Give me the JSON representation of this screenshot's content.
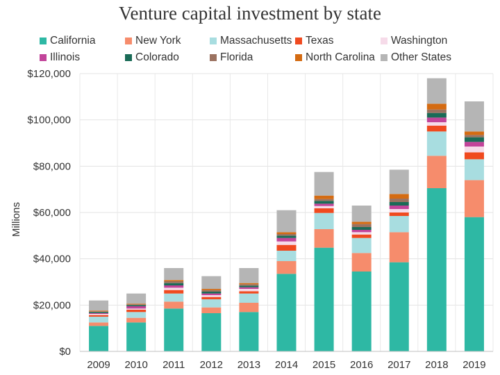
{
  "chart_data": {
    "type": "bar",
    "stacked": true,
    "title": "Venture capital investment by state",
    "xlabel": "",
    "ylabel": "Millions",
    "ylim": [
      0,
      120000
    ],
    "yticks": [
      0,
      20000,
      40000,
      60000,
      80000,
      100000,
      120000
    ],
    "ytick_labels": [
      "$0",
      "$20,000",
      "$40,000",
      "$60,000",
      "$80,000",
      "$100,000",
      "$120,000"
    ],
    "grid": true,
    "legend_position": "top",
    "categories": [
      "2009",
      "2010",
      "2011",
      "2012",
      "2013",
      "2014",
      "2015",
      "2016",
      "2017",
      "2018",
      "2019"
    ],
    "series": [
      {
        "name": "California",
        "color": "#2eb8a4",
        "values": [
          11000,
          12500,
          18500,
          16500,
          17000,
          33500,
          44800,
          34500,
          38500,
          70500,
          58000
        ]
      },
      {
        "name": "New York",
        "color": "#f68c6c",
        "values": [
          1500,
          2000,
          3000,
          2500,
          4000,
          5500,
          8000,
          8000,
          13000,
          14000,
          16000
        ]
      },
      {
        "name": "Massachusetts",
        "color": "#a8dde0",
        "values": [
          2500,
          2500,
          3500,
          3500,
          4000,
          4500,
          7000,
          6500,
          7000,
          10500,
          9000
        ]
      },
      {
        "name": "Texas",
        "color": "#f04a1f",
        "values": [
          700,
          1000,
          1500,
          1000,
          1000,
          2500,
          2000,
          1500,
          1500,
          2500,
          3000
        ]
      },
      {
        "name": "Washington",
        "color": "#f6dbe9",
        "values": [
          500,
          500,
          1000,
          800,
          1000,
          1500,
          1000,
          1000,
          1500,
          1500,
          2500
        ]
      },
      {
        "name": "Illinois",
        "color": "#c2449a",
        "values": [
          300,
          1000,
          1000,
          700,
          700,
          1500,
          1000,
          1000,
          1500,
          2000,
          2000
        ]
      },
      {
        "name": "Colorado",
        "color": "#1a6b57",
        "values": [
          500,
          500,
          1000,
          800,
          700,
          1000,
          1200,
          1200,
          1500,
          2000,
          2000
        ]
      },
      {
        "name": "Florida",
        "color": "#9b7260",
        "values": [
          300,
          300,
          800,
          700,
          600,
          700,
          800,
          1300,
          1500,
          1500,
          1000
        ]
      },
      {
        "name": "North Carolina",
        "color": "#d46b12",
        "values": [
          300,
          300,
          500,
          500,
          500,
          800,
          1500,
          1000,
          2000,
          2500,
          1500
        ]
      },
      {
        "name": "Other States",
        "color": "#b5b5b5",
        "values": [
          4400,
          4400,
          5200,
          5500,
          6500,
          9500,
          10200,
          7000,
          10500,
          11000,
          13000
        ]
      }
    ]
  }
}
